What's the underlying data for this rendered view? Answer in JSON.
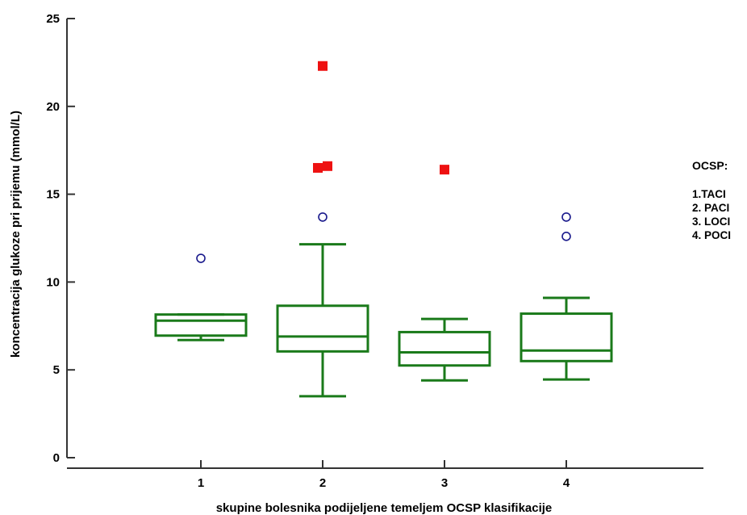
{
  "chart_data": {
    "type": "box",
    "xlabel": "skupine bolesnika podijeljene temeljem OCSP klasifikacije",
    "ylabel": "koncentracija glukoze pri prijemu (mmol/L)",
    "ylim": [
      0,
      25
    ],
    "yticks": [
      0,
      5,
      10,
      15,
      20,
      25
    ],
    "categories": [
      "1",
      "2",
      "3",
      "4"
    ],
    "boxes": [
      {
        "category": "1",
        "whisker_low": 6.7,
        "q1": 6.95,
        "median": 7.8,
        "q3": 8.15,
        "whisker_high": 8.15,
        "outliers": [
          11.35
        ],
        "far_outliers": []
      },
      {
        "category": "2",
        "whisker_low": 3.5,
        "q1": 6.05,
        "median": 6.9,
        "q3": 8.65,
        "whisker_high": 12.15,
        "outliers": [
          13.7
        ],
        "far_outliers": [
          22.3,
          16.5,
          16.6
        ]
      },
      {
        "category": "3",
        "whisker_low": 4.4,
        "q1": 5.25,
        "median": 6.0,
        "q3": 7.15,
        "whisker_high": 7.9,
        "outliers": [],
        "far_outliers": [
          16.4
        ]
      },
      {
        "category": "4",
        "whisker_low": 4.45,
        "q1": 5.5,
        "median": 6.1,
        "q3": 8.2,
        "whisker_high": 9.1,
        "outliers": [
          13.7,
          12.6
        ],
        "far_outliers": []
      }
    ],
    "colors": {
      "box": "#1a7a1a",
      "outlier": "#1a1a8c",
      "far_outlier": "#ee1111",
      "axis": "#333333"
    },
    "legend": {
      "title": "OCSP:",
      "items": [
        "1.TACI",
        "2. PACI",
        "3. LOCI",
        "4. POCI"
      ]
    },
    "grid": false
  }
}
